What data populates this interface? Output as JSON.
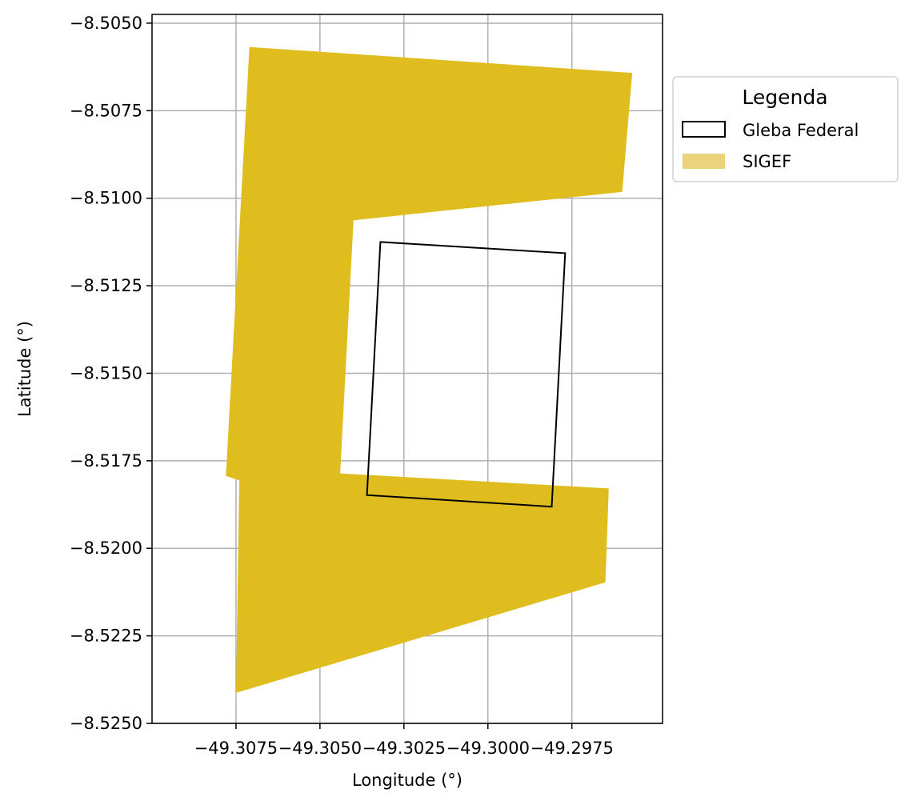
{
  "chart_data": {
    "type": "map",
    "xlabel": "Longitude (°)",
    "ylabel": "Latitude (°)",
    "xlim": [
      -49.31,
      -49.2948
    ],
    "ylim": [
      -8.525,
      -8.50475
    ],
    "x_ticks": [
      -49.3075,
      -49.305,
      -49.3025,
      -49.3,
      -49.2975
    ],
    "x_tick_labels": [
      "−49.3075",
      "−49.3050",
      "−49.3025",
      "−49.3000",
      "−49.2975"
    ],
    "y_ticks": [
      -8.505,
      -8.5075,
      -8.51,
      -8.5125,
      -8.515,
      -8.5175,
      -8.52,
      -8.5225,
      -8.525
    ],
    "y_tick_labels": [
      "−8.5050",
      "−8.5075",
      "−8.5100",
      "−8.5125",
      "−8.5150",
      "−8.5175",
      "−8.5200",
      "−8.5225",
      "−8.5250"
    ],
    "grid": true,
    "legend": {
      "title": "Legenda",
      "placement": "outside-upper-right",
      "entries": [
        "Gleba Federal",
        "SIGEF"
      ]
    },
    "series": [
      {
        "name": "SIGEF",
        "kind": "filled-polygon",
        "color": "#dfbd1f",
        "coordinates": [
          [
            -49.3071,
            -8.50568
          ],
          [
            -49.2957,
            -8.50642
          ],
          [
            -49.2957,
            -8.50639
          ],
          [
            -49.296,
            -8.50982
          ],
          [
            -49.304,
            -8.51063
          ],
          [
            -49.3044,
            -8.51786
          ],
          [
            -49.2964,
            -8.51829
          ],
          [
            -49.2965,
            -8.52097
          ],
          [
            -49.3075,
            -8.52413
          ],
          [
            -49.3074,
            -8.51806
          ],
          [
            -49.3078,
            -8.51793
          ]
        ]
      },
      {
        "name": "Gleba Federal",
        "kind": "outline-polygon",
        "color": "#000000",
        "coordinates": [
          [
            -49.3032,
            -8.51125
          ],
          [
            -49.2977,
            -8.51157
          ],
          [
            -49.2981,
            -8.51881
          ],
          [
            -49.3036,
            -8.51848
          ]
        ]
      }
    ]
  }
}
